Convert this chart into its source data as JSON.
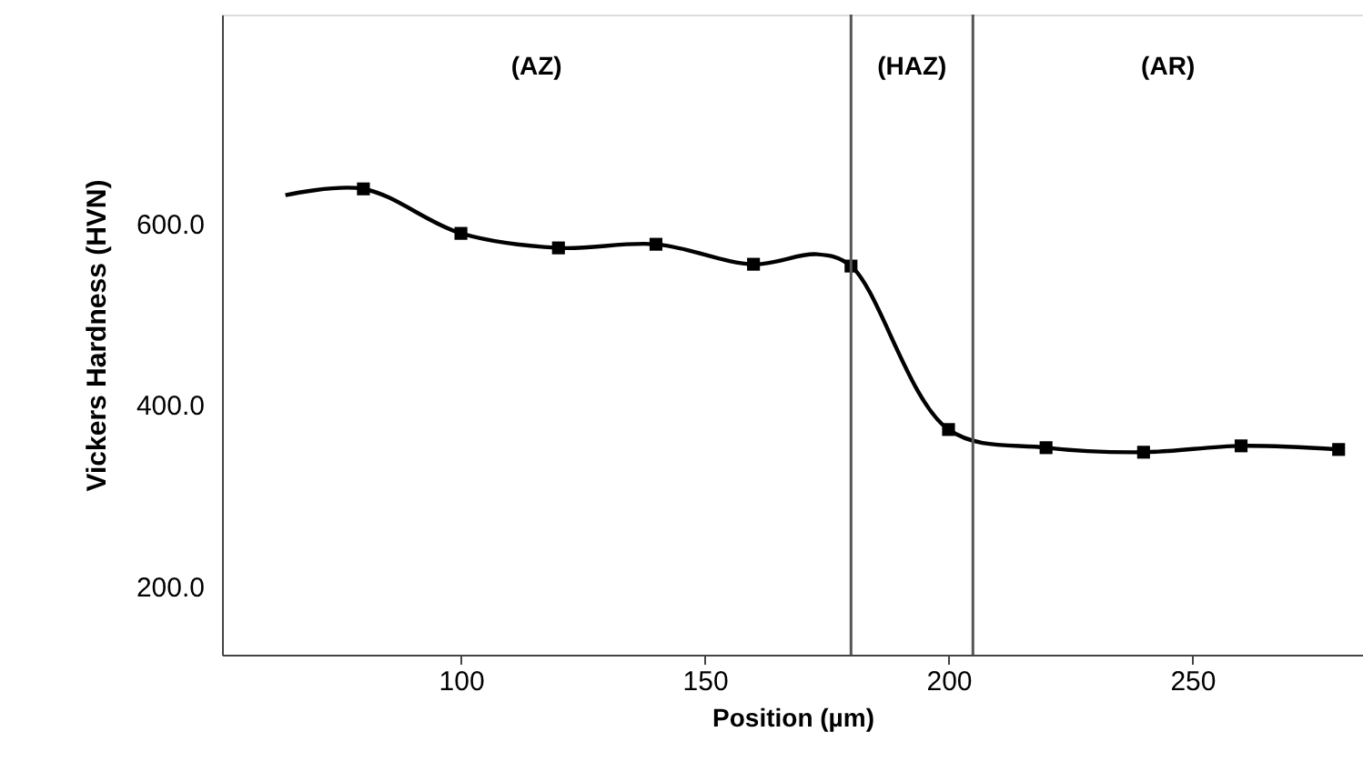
{
  "chart_data": {
    "type": "line",
    "xlabel": "Position (µm)",
    "ylabel": "Vickers Hardness (HVN)",
    "series": [
      {
        "type": "line",
        "color": "#000000",
        "marker": "none",
        "line_style": "solid",
        "x": [
          64,
          80,
          100,
          120,
          140,
          160,
          173,
          180,
          200,
          220,
          240,
          260,
          280
        ],
        "values": [
          631,
          638,
          589,
          573,
          577,
          555,
          566,
          553,
          373,
          353,
          348,
          355,
          351
        ]
      },
      {
        "type": "scatter",
        "color": "#000000",
        "marker": "square",
        "x": [
          80,
          100,
          120,
          140,
          160,
          180,
          200,
          220,
          240,
          260,
          280
        ],
        "values": [
          638,
          589,
          573,
          577,
          555,
          553,
          373,
          353,
          348,
          355,
          351
        ]
      }
    ],
    "xlim": [
      51,
      285
    ],
    "ylim": [
      125,
      830
    ],
    "xticks": [
      100,
      150,
      200,
      250
    ],
    "yticks": [
      {
        "value": 200,
        "label": "200.0"
      },
      {
        "value": 400,
        "label": "400.0"
      },
      {
        "value": 600,
        "label": "600.0"
      }
    ],
    "ref_lines": [
      {
        "axis": "x",
        "value": 180,
        "color": "#555555"
      },
      {
        "axis": "x",
        "value": 205,
        "color": "#555555"
      }
    ],
    "annotations": [
      "(AZ)",
      "(HAZ)",
      "(AR)"
    ],
    "grid": false
  }
}
